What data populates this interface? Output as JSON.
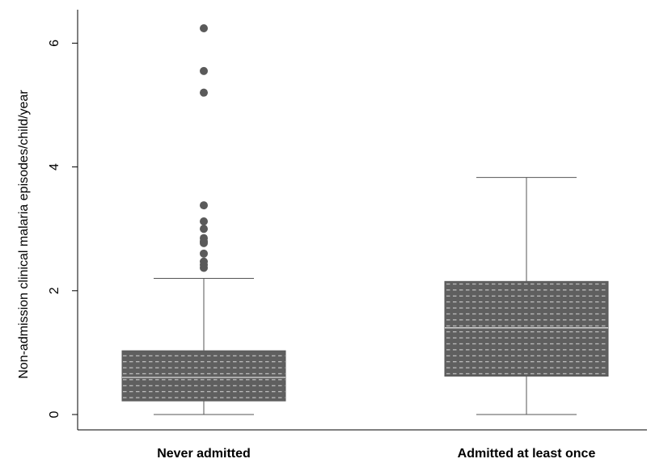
{
  "chart_data": {
    "type": "box",
    "title": "",
    "xlabel": "",
    "ylabel": "Non-admission clinical malaria episodes/child/year",
    "ylim": [
      0,
      6.5
    ],
    "yticks": [
      0,
      2,
      4,
      6
    ],
    "grid": false,
    "box_color": "#5a5a5a",
    "outlier_color": "#5a5a5a",
    "categories": [
      "Never admitted",
      "Admitted at least once"
    ],
    "boxes": [
      {
        "category": "Never admitted",
        "whisker_low": 0,
        "q1": 0.22,
        "median": 0.6,
        "q3": 1.03,
        "whisker_high": 2.2,
        "outliers": [
          2.37,
          2.42,
          2.47,
          2.6,
          2.77,
          2.8,
          2.85,
          3.0,
          3.12,
          3.38,
          5.2,
          5.55,
          6.24
        ]
      },
      {
        "category": "Admitted at least once",
        "whisker_low": 0,
        "q1": 0.62,
        "median": 1.4,
        "q3": 2.15,
        "whisker_high": 3.83,
        "outliers": []
      }
    ]
  }
}
